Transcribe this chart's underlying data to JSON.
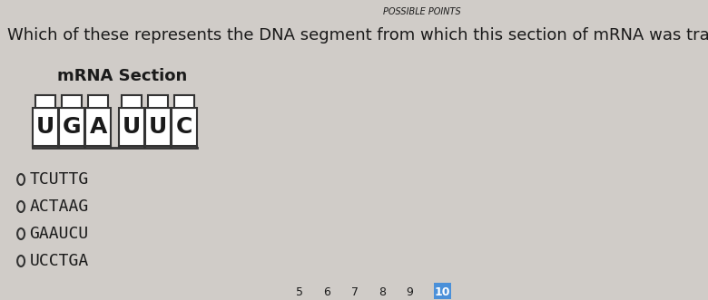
{
  "question": "Which of these represents the DNA segment from which this section of mRNA was transcribed?",
  "possible_points_label": "POSSIBLE POINTS",
  "mrna_label": "mRNA Section",
  "mrna_bases": [
    "U",
    "G",
    "A",
    "U",
    "U",
    "C"
  ],
  "options": [
    "TCUTTG",
    "ACTAAG",
    "GAAUCU",
    "UCCTGA"
  ],
  "page_numbers": [
    "5",
    "6",
    "7",
    "8",
    "9",
    "10"
  ],
  "bg_color": "#d0ccc8",
  "text_color": "#1a1a1a",
  "box_color": "#ffffff",
  "box_border": "#333333",
  "question_fontsize": 13,
  "option_fontsize": 13,
  "mrna_fontsize": 18,
  "figure_width": 7.8,
  "figure_height": 3.31
}
